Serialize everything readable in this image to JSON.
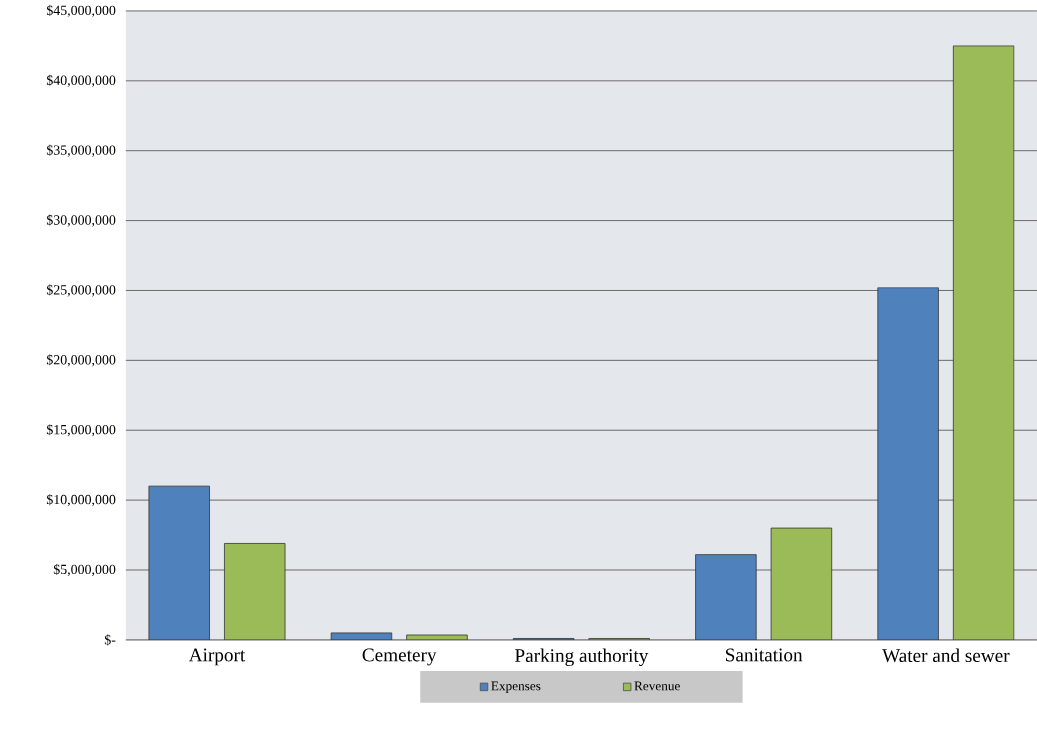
{
  "chart_data": {
    "type": "bar",
    "categories": [
      "Airport",
      "Cemetery",
      "Parking authority",
      "Sanitation",
      "Water and sewer"
    ],
    "series": [
      {
        "name": "Expenses",
        "color": "#4f81bd",
        "values": [
          11000000,
          500000,
          100000,
          6100000,
          25200000
        ]
      },
      {
        "name": "Revenue",
        "color": "#9bbb59",
        "values": [
          6900000,
          350000,
          100000,
          8000000,
          42500000
        ]
      }
    ],
    "ylim": [
      0,
      45000000
    ],
    "yticks": [
      {
        "value": 0,
        "label": "$-"
      },
      {
        "value": 5000000,
        "label": "$5,000,000"
      },
      {
        "value": 10000000,
        "label": "$10,000,000"
      },
      {
        "value": 15000000,
        "label": "$15,000,000"
      },
      {
        "value": 20000000,
        "label": "$20,000,000"
      },
      {
        "value": 25000000,
        "label": "$25,000,000"
      },
      {
        "value": 30000000,
        "label": "$30,000,000"
      },
      {
        "value": 35000000,
        "label": "$35,000,000"
      },
      {
        "value": 40000000,
        "label": "$40,000,000"
      },
      {
        "value": 45000000,
        "label": "$45,000,000"
      }
    ],
    "grid": "y",
    "legend": "bottom"
  }
}
